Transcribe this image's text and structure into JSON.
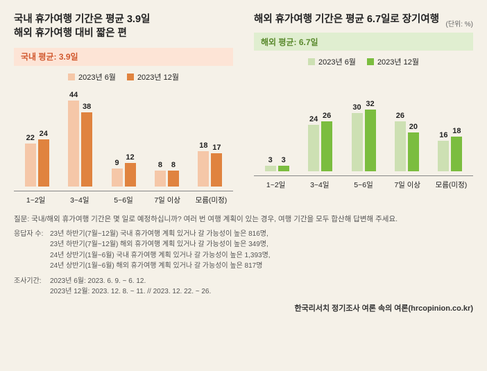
{
  "background_color": "#f5f1e8",
  "domestic": {
    "title_line1": "국내 휴가여행 기간은 평균 3.9일",
    "title_line2": "해외 휴가여행 대비 짧은 편",
    "avg_label": "국내 평균: 3.9일",
    "avg_bg": "#fde4d6",
    "avg_text_color": "#d1582e",
    "series": [
      {
        "name": "2023년 6월",
        "color": "#f5c7a8"
      },
      {
        "name": "2023년 12월",
        "color": "#e0833f"
      }
    ],
    "categories": [
      "1~2일",
      "3~4일",
      "5~6일",
      "7일 이상",
      "모름(미정)"
    ],
    "values_a": [
      22,
      44,
      9,
      8,
      18
    ],
    "values_b": [
      24,
      38,
      12,
      8,
      17
    ],
    "ymax": 50
  },
  "overseas": {
    "title_line1": "해외 휴가여행 기간은 평균 6.7일로 장기여행",
    "title_line2": "",
    "unit": "(단위: %)",
    "avg_label": "해외 평균: 6.7일",
    "avg_bg": "#e0eed0",
    "avg_text_color": "#5a8a2e",
    "series": [
      {
        "name": "2023년 6월",
        "color": "#cde0b3"
      },
      {
        "name": "2023년 12월",
        "color": "#7bbd3f"
      }
    ],
    "categories": [
      "1~2일",
      "3~4일",
      "5~6일",
      "7일 이상",
      "모름(미정)"
    ],
    "values_a": [
      3,
      24,
      30,
      26,
      16
    ],
    "values_b": [
      3,
      26,
      32,
      20,
      18
    ],
    "ymax": 50
  },
  "footer": {
    "question": "질문: 국내/해외 휴가여행 기간은 몇 일로 예정하십니까? 여러 번 여행 계획이 있는 경우, 여행 기간을 모두 합산해 답변해 주세요.",
    "resp_label": "응답자 수:",
    "resp_lines": [
      "23년 하반기(7월~12월) 국내 휴가여행 계획 있거나 갈 가능성이 높은 816명,",
      "23년 하반기(7월~12월) 해외 휴가여행 계획 있거나 갈 가능성이 높은 349명,",
      "24년 상반기(1월~6월) 국내 휴가여행 계획 있거나 갈 가능성이 높은 1,393명,",
      "24년 상반기(1월~6월) 해외 휴가여행 계획 있거나 갈 가능성이 높은 817명"
    ],
    "period_label": "조사기간:",
    "period_lines": [
      "2023년 6월: 2023. 6. 9. ~ 6. 12.",
      "2023년 12월: 2023. 12. 8. ~ 11. // 2023. 12. 22. ~ 26."
    ],
    "source": "한국리서치 정기조사 여론 속의 여론(hrcopinion.co.kr)"
  }
}
